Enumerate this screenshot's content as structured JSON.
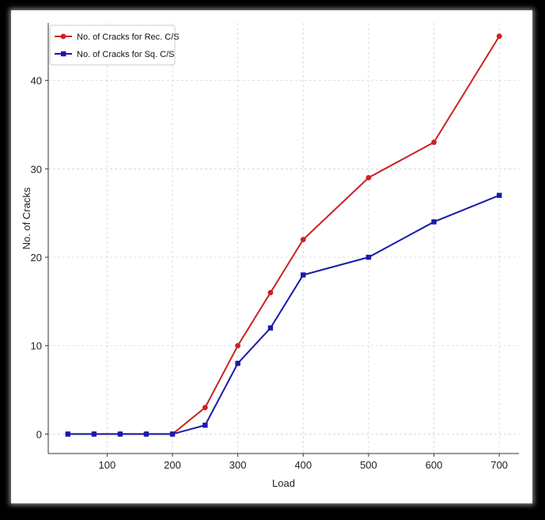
{
  "chart_data": {
    "type": "line",
    "title": "",
    "xlabel": "Load",
    "ylabel": "No. of Cracks",
    "x": [
      40,
      80,
      120,
      160,
      200,
      250,
      300,
      350,
      400,
      500,
      600,
      700
    ],
    "xlim": [
      10,
      730
    ],
    "ylim": [
      -2.2,
      46.5
    ],
    "xticks": [
      100,
      200,
      300,
      400,
      500,
      600,
      700
    ],
    "yticks": [
      0,
      10,
      20,
      30,
      40
    ],
    "grid": true,
    "legend_position": "top-left",
    "series": [
      {
        "name": "No. of Cracks for Rec. C/S",
        "color": "#cc2222",
        "marker": "circle",
        "values": [
          0,
          0,
          0,
          0,
          0,
          3,
          10,
          16,
          22,
          29,
          33,
          45
        ]
      },
      {
        "name": "No. of Cracks for Sq. C/S",
        "color": "#1a1aaa",
        "marker": "square",
        "values": [
          0,
          0,
          0,
          0,
          0,
          1,
          8,
          12,
          18,
          20,
          24,
          27
        ]
      }
    ]
  }
}
